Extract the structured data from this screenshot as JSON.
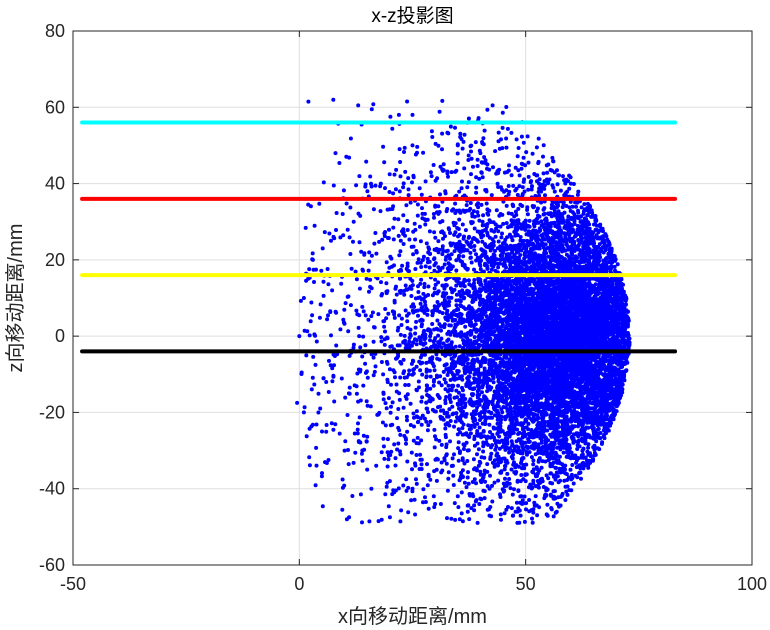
{
  "chart_data": {
    "type": "scatter",
    "title": "x-z投影图",
    "xlabel": "x向移动距离/mm",
    "ylabel": "z向移动距离/mm",
    "xlim": [
      -50,
      100
    ],
    "ylim": [
      -60,
      80
    ],
    "xticks": [
      -50,
      0,
      50,
      100
    ],
    "yticks": [
      -60,
      -40,
      -20,
      0,
      20,
      40,
      60,
      80
    ],
    "grid": true,
    "colors": {
      "points": "#0000ff",
      "axis": "#262626",
      "grid": "#dfdfdf"
    },
    "horizontal_lines": [
      {
        "y": 56,
        "x_start": -48,
        "x_end": 83,
        "color": "#00ffff"
      },
      {
        "y": 36,
        "x_start": -48,
        "x_end": 83,
        "color": "#ff0000"
      },
      {
        "y": 16,
        "x_start": -48,
        "x_end": 83,
        "color": "#ffff00"
      },
      {
        "y": -4,
        "x_start": -48,
        "x_end": 83,
        "color": "#000000"
      }
    ],
    "series": [
      {
        "color": "#0000ff",
        "description": "dense cloud of points, bounded approximately by x from 0 to 73 and z from -49 to 62, densest near x≈45–70, z≈-10–10",
        "points": [
          [
            2,
            61.5
          ],
          [
            7.5,
            62
          ],
          [
            13,
            60.5
          ],
          [
            16,
            59.5
          ],
          [
            8,
            48
          ],
          [
            -0.5,
            -17.5
          ],
          [
            9.5,
            -45.5
          ],
          [
            10.5,
            -48
          ],
          [
            11,
            -47.5
          ],
          [
            17.5,
            -48.5
          ],
          [
            20,
            -47.5
          ],
          [
            30,
            56
          ],
          [
            22,
            58
          ],
          [
            25,
            58
          ],
          [
            35,
            50
          ],
          [
            40,
            48
          ],
          [
            55,
            45
          ],
          [
            60,
            40
          ],
          [
            65,
            25
          ],
          [
            70,
            10
          ],
          [
            72.5,
            0
          ],
          [
            72.5,
            -5
          ],
          [
            70,
            -15
          ],
          [
            65,
            -25
          ],
          [
            60,
            -32
          ],
          [
            50,
            -38
          ],
          [
            42,
            -40
          ],
          [
            35,
            -42
          ],
          [
            30,
            -44
          ],
          [
            25,
            -40
          ],
          [
            20,
            -38
          ],
          [
            15,
            -35
          ],
          [
            10,
            -30
          ],
          [
            5,
            -25
          ],
          [
            1,
            -20
          ],
          [
            0,
            0
          ],
          [
            1,
            10
          ],
          [
            3,
            20
          ],
          [
            7,
            25
          ],
          [
            12,
            30
          ],
          [
            18,
            40
          ],
          [
            25,
            50
          ]
        ]
      }
    ]
  }
}
